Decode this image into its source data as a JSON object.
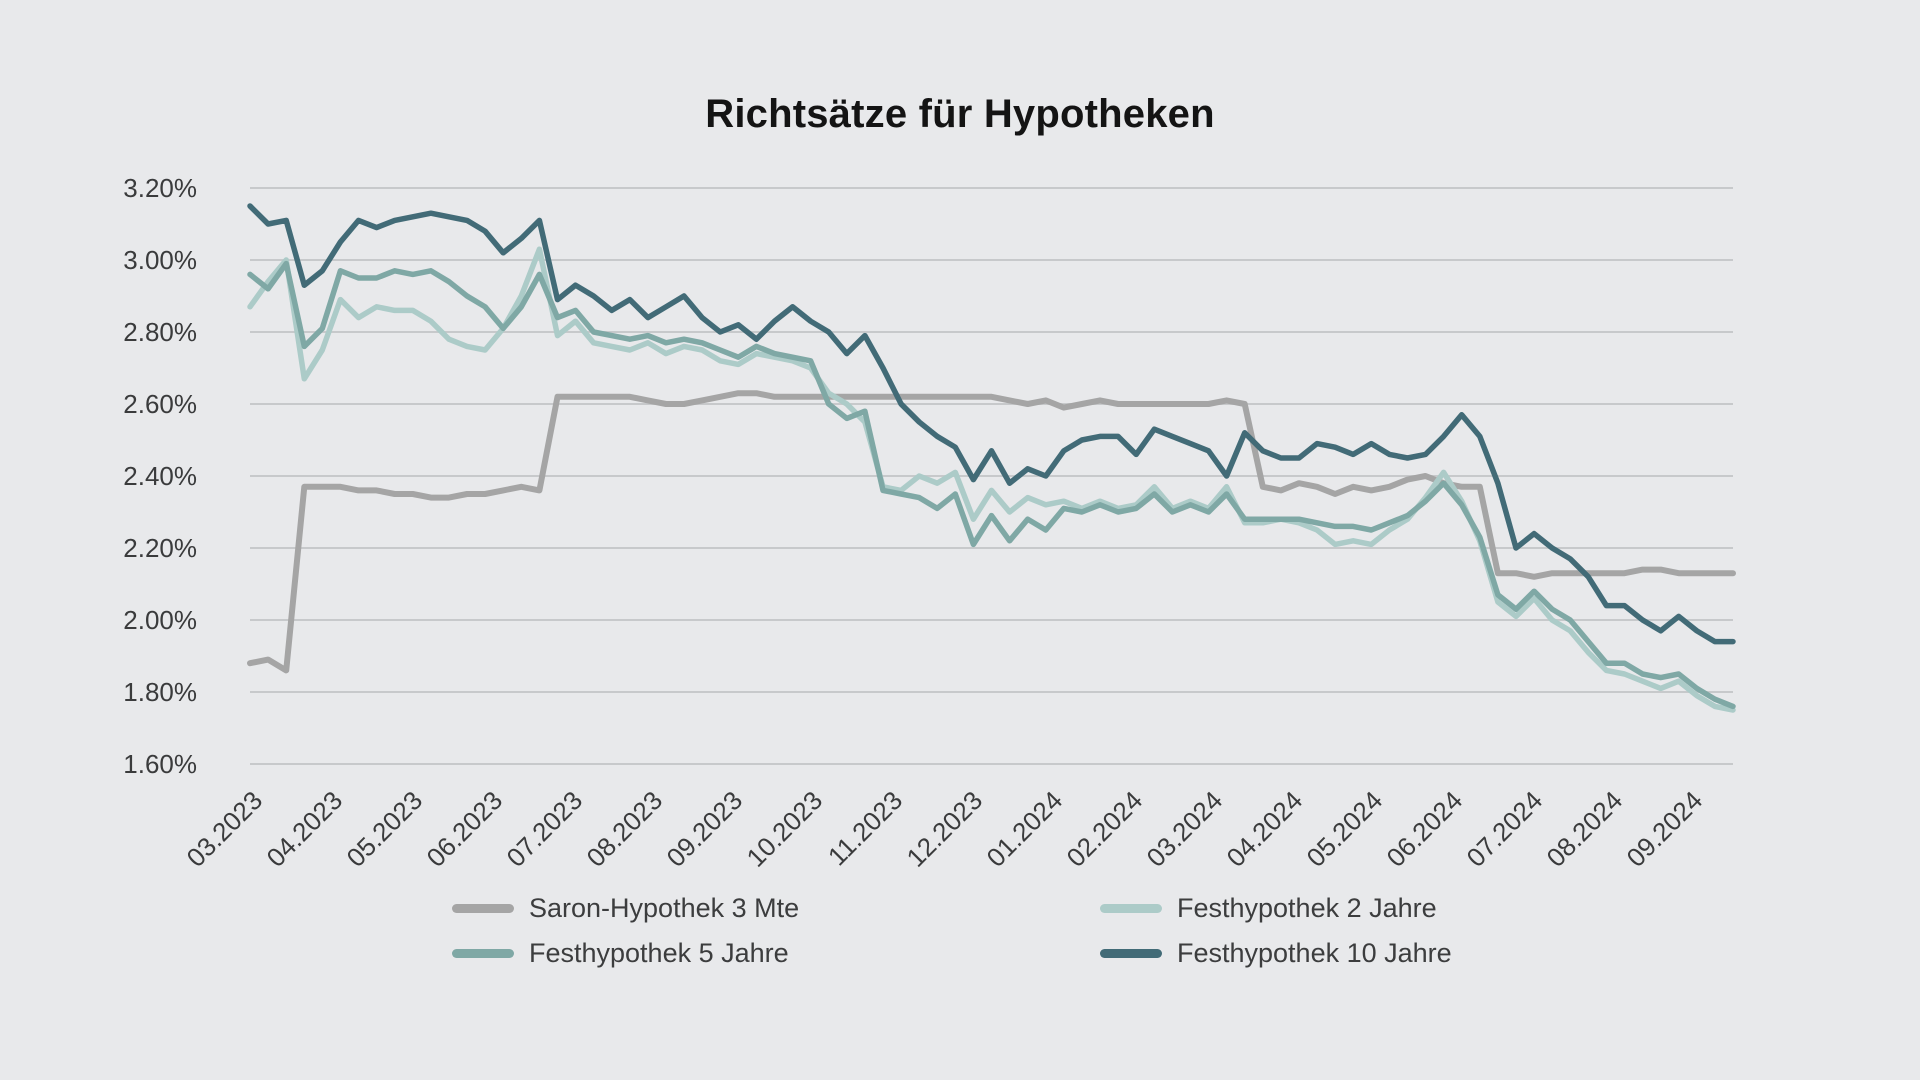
{
  "title": "Richtsätze für Hypotheken",
  "colors": {
    "background": "#e8e9eb",
    "gridline": "#c7c9cb",
    "axis_text": "#3a3b3c",
    "title_text": "#141414",
    "saron": "#a5a5a5",
    "fest2": "#accbc8",
    "fest5": "#7fa8a5",
    "fest10": "#426b77"
  },
  "chart_data": {
    "type": "line",
    "title": "Richtsätze für Hypotheken",
    "xlabel": "",
    "ylabel": "",
    "ylim": [
      1.6,
      3.2
    ],
    "y_tick_labels": [
      "3.20%",
      "3.00%",
      "2.80%",
      "2.60%",
      "2.40%",
      "2.20%",
      "2.00%",
      "1.80%",
      "1.60%"
    ],
    "x_tick_labels": [
      "03.2023",
      "04.2023",
      "05.2023",
      "06.2023",
      "07.2023",
      "08.2023",
      "09.2023",
      "10.2023",
      "11.2023",
      "12.2023",
      "01.2024",
      "02.2024",
      "03.2024",
      "04.2024",
      "05.2024",
      "06.2024",
      "07.2024",
      "08.2024",
      "09.2024"
    ],
    "x_unit": "weekly observations from 03.2023 through 09.2024",
    "grid": "horizontal only",
    "legend_position": "bottom, two columns",
    "series": [
      {
        "name": "Saron-Hypothek 3 Mte",
        "color": "#a5a5a5",
        "stroke_width": 6,
        "values": [
          1.88,
          1.89,
          1.86,
          2.37,
          2.37,
          2.37,
          2.36,
          2.36,
          2.35,
          2.35,
          2.34,
          2.34,
          2.35,
          2.35,
          2.36,
          2.37,
          2.36,
          2.62,
          2.62,
          2.62,
          2.62,
          2.62,
          2.61,
          2.6,
          2.6,
          2.61,
          2.62,
          2.63,
          2.63,
          2.62,
          2.62,
          2.62,
          2.62,
          2.62,
          2.62,
          2.62,
          2.62,
          2.62,
          2.62,
          2.62,
          2.62,
          2.62,
          2.61,
          2.6,
          2.61,
          2.59,
          2.6,
          2.61,
          2.6,
          2.6,
          2.6,
          2.6,
          2.6,
          2.6,
          2.61,
          2.6,
          2.37,
          2.36,
          2.38,
          2.37,
          2.35,
          2.37,
          2.36,
          2.37,
          2.39,
          2.4,
          2.38,
          2.37,
          2.37,
          2.13,
          2.13,
          2.12,
          2.13,
          2.13,
          2.13,
          2.13,
          2.13,
          2.14,
          2.14,
          2.13,
          2.13,
          2.13,
          2.13
        ]
      },
      {
        "name": "Festhypothek 2 Jahre",
        "color": "#accbc8",
        "stroke_width": 5.5,
        "values": [
          2.87,
          2.94,
          3.0,
          2.67,
          2.75,
          2.89,
          2.84,
          2.87,
          2.86,
          2.86,
          2.83,
          2.78,
          2.76,
          2.75,
          2.81,
          2.9,
          3.03,
          2.79,
          2.83,
          2.77,
          2.76,
          2.75,
          2.77,
          2.74,
          2.76,
          2.75,
          2.72,
          2.71,
          2.74,
          2.73,
          2.72,
          2.7,
          2.63,
          2.6,
          2.55,
          2.37,
          2.36,
          2.4,
          2.38,
          2.41,
          2.28,
          2.36,
          2.3,
          2.34,
          2.32,
          2.33,
          2.31,
          2.33,
          2.31,
          2.32,
          2.37,
          2.31,
          2.33,
          2.31,
          2.37,
          2.27,
          2.27,
          2.28,
          2.27,
          2.25,
          2.21,
          2.22,
          2.21,
          2.25,
          2.28,
          2.34,
          2.41,
          2.33,
          2.22,
          2.05,
          2.01,
          2.06,
          2.0,
          1.97,
          1.91,
          1.86,
          1.85,
          1.83,
          1.81,
          1.83,
          1.79,
          1.76,
          1.75
        ]
      },
      {
        "name": "Festhypothek 5 Jahre",
        "color": "#7fa8a5",
        "stroke_width": 5.5,
        "values": [
          2.96,
          2.92,
          2.99,
          2.76,
          2.81,
          2.97,
          2.95,
          2.95,
          2.97,
          2.96,
          2.97,
          2.94,
          2.9,
          2.87,
          2.81,
          2.87,
          2.96,
          2.84,
          2.86,
          2.8,
          2.79,
          2.78,
          2.79,
          2.77,
          2.78,
          2.77,
          2.75,
          2.73,
          2.76,
          2.74,
          2.73,
          2.72,
          2.6,
          2.56,
          2.58,
          2.36,
          2.35,
          2.34,
          2.31,
          2.35,
          2.21,
          2.29,
          2.22,
          2.28,
          2.25,
          2.31,
          2.3,
          2.32,
          2.3,
          2.31,
          2.35,
          2.3,
          2.32,
          2.3,
          2.35,
          2.28,
          2.28,
          2.28,
          2.28,
          2.27,
          2.26,
          2.26,
          2.25,
          2.27,
          2.29,
          2.33,
          2.38,
          2.32,
          2.23,
          2.07,
          2.03,
          2.08,
          2.03,
          2.0,
          1.94,
          1.88,
          1.88,
          1.85,
          1.84,
          1.85,
          1.81,
          1.78,
          1.76
        ]
      },
      {
        "name": "Festhypothek 10 Jahre",
        "color": "#426b77",
        "stroke_width": 5.5,
        "values": [
          3.15,
          3.1,
          3.11,
          2.93,
          2.97,
          3.05,
          3.11,
          3.09,
          3.11,
          3.12,
          3.13,
          3.12,
          3.11,
          3.08,
          3.02,
          3.06,
          3.11,
          2.89,
          2.93,
          2.9,
          2.86,
          2.89,
          2.84,
          2.87,
          2.9,
          2.84,
          2.8,
          2.82,
          2.78,
          2.83,
          2.87,
          2.83,
          2.8,
          2.74,
          2.79,
          2.7,
          2.6,
          2.55,
          2.51,
          2.48,
          2.39,
          2.47,
          2.38,
          2.42,
          2.4,
          2.47,
          2.5,
          2.51,
          2.51,
          2.46,
          2.53,
          2.51,
          2.49,
          2.47,
          2.4,
          2.52,
          2.47,
          2.45,
          2.45,
          2.49,
          2.48,
          2.46,
          2.49,
          2.46,
          2.45,
          2.46,
          2.51,
          2.57,
          2.51,
          2.38,
          2.2,
          2.24,
          2.2,
          2.17,
          2.12,
          2.04,
          2.04,
          2.0,
          1.97,
          2.01,
          1.97,
          1.94,
          1.94
        ]
      }
    ],
    "legend_order": [
      0,
      1,
      2,
      3
    ]
  }
}
